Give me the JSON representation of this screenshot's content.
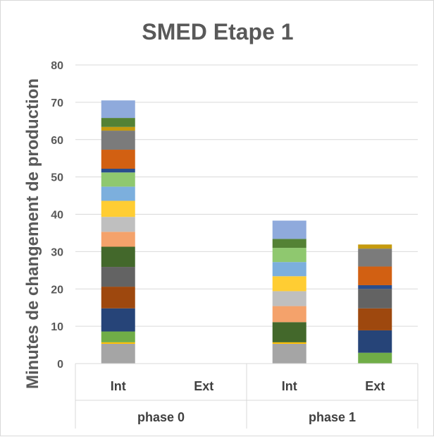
{
  "chart_data": {
    "type": "bar",
    "stacked": true,
    "title": "SMED Etape 1",
    "ylabel": "Minutes  de changement de production",
    "xlabel": "",
    "ylim": [
      0,
      80
    ],
    "yticks": [
      0,
      10,
      20,
      30,
      40,
      50,
      60,
      70,
      80
    ],
    "grid": true,
    "legend": "none",
    "groups": [
      {
        "label": "phase 0",
        "categories": [
          "Int",
          "Ext"
        ]
      },
      {
        "label": "phase 1",
        "categories": [
          "Int",
          "Ext"
        ]
      }
    ],
    "categories": [
      "Int",
      "Ext",
      "Int",
      "Ext"
    ],
    "stacks": [
      {
        "group": "phase 0",
        "category": "Int",
        "segments": [
          {
            "value": 5.3,
            "color": "#a5a5a5"
          },
          {
            "value": 0.4,
            "color": "#ffc000"
          },
          {
            "value": 2.9,
            "color": "#70ad47"
          },
          {
            "value": 6.2,
            "color": "#264478"
          },
          {
            "value": 5.8,
            "color": "#9e480e"
          },
          {
            "value": 5.3,
            "color": "#636363"
          },
          {
            "value": 5.4,
            "color": "#43682b"
          },
          {
            "value": 4.0,
            "color": "#f4a26b"
          },
          {
            "value": 4.0,
            "color": "#bfbfbf"
          },
          {
            "value": 4.3,
            "color": "#ffcd33"
          },
          {
            "value": 3.8,
            "color": "#7cafdd"
          },
          {
            "value": 3.8,
            "color": "#8fc86f"
          },
          {
            "value": 1.0,
            "color": "#2a4e8d"
          },
          {
            "value": 5.1,
            "color": "#d26012"
          },
          {
            "value": 5.1,
            "color": "#7b7b7b"
          },
          {
            "value": 1.0,
            "color": "#c59a0e"
          },
          {
            "value": 2.4,
            "color": "#548235"
          },
          {
            "value": 4.7,
            "color": "#8faadc"
          }
        ]
      },
      {
        "group": "phase 0",
        "category": "Ext",
        "segments": []
      },
      {
        "group": "phase 1",
        "category": "Int",
        "segments": [
          {
            "value": 5.3,
            "color": "#a5a5a5"
          },
          {
            "value": 0.4,
            "color": "#ffc000"
          },
          {
            "value": 5.4,
            "color": "#43682b"
          },
          {
            "value": 4.3,
            "color": "#f4a26b"
          },
          {
            "value": 4.0,
            "color": "#bfbfbf"
          },
          {
            "value": 4.0,
            "color": "#ffcd33"
          },
          {
            "value": 3.8,
            "color": "#7cafdd"
          },
          {
            "value": 3.8,
            "color": "#8fc86f"
          },
          {
            "value": 2.4,
            "color": "#548235"
          },
          {
            "value": 4.9,
            "color": "#8faadc"
          }
        ]
      },
      {
        "group": "phase 1",
        "category": "Ext",
        "segments": [
          {
            "value": 2.9,
            "color": "#70ad47"
          },
          {
            "value": 6.0,
            "color": "#264478"
          },
          {
            "value": 5.9,
            "color": "#9e480e"
          },
          {
            "value": 5.2,
            "color": "#636363"
          },
          {
            "value": 1.0,
            "color": "#2a4e8d"
          },
          {
            "value": 5.0,
            "color": "#d26012"
          },
          {
            "value": 4.8,
            "color": "#7b7b7b"
          },
          {
            "value": 1.1,
            "color": "#c59a0e"
          }
        ]
      }
    ]
  }
}
